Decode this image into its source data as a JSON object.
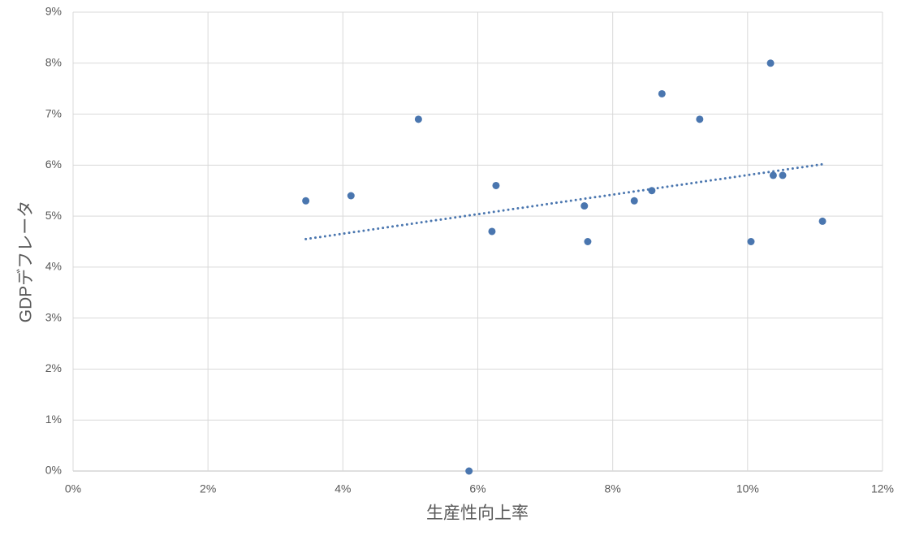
{
  "chart_data": {
    "type": "scatter",
    "xlabel": "生産性向上率",
    "ylabel": "GDPデフレータ",
    "x": [
      3.45,
      4.12,
      5.12,
      5.87,
      6.21,
      6.27,
      7.58,
      7.63,
      8.32,
      8.58,
      8.73,
      9.29,
      10.05,
      10.34,
      10.38,
      10.52,
      11.11
    ],
    "values": [
      5.3,
      5.4,
      6.9,
      0,
      4.7,
      5.6,
      5.2,
      4.5,
      5.3,
      5.5,
      7.4,
      6.9,
      4.5,
      8.0,
      5.8,
      5.8,
      4.9
    ],
    "color": "#4a76af",
    "trendline": "linear",
    "xlim": [
      0,
      12
    ],
    "xticks": [
      {
        "value": 0,
        "label": "0%"
      },
      {
        "value": 2,
        "label": "2%"
      },
      {
        "value": 4,
        "label": "4%"
      },
      {
        "value": 6,
        "label": "6%"
      },
      {
        "value": 8,
        "label": "8%"
      },
      {
        "value": 10,
        "label": "10%"
      },
      {
        "value": 12,
        "label": "12%"
      }
    ],
    "ylim": [
      0,
      9
    ],
    "yticks": [
      {
        "value": 0,
        "label": "0%"
      },
      {
        "value": 1,
        "label": "1%"
      },
      {
        "value": 2,
        "label": "2%"
      },
      {
        "value": 3,
        "label": "3%"
      },
      {
        "value": 4,
        "label": "4%"
      },
      {
        "value": 5,
        "label": "5%"
      },
      {
        "value": 6,
        "label": "6%"
      },
      {
        "value": 7,
        "label": "7%"
      },
      {
        "value": 8,
        "label": "8%"
      },
      {
        "value": 9,
        "label": "9%"
      }
    ],
    "grid": true
  }
}
